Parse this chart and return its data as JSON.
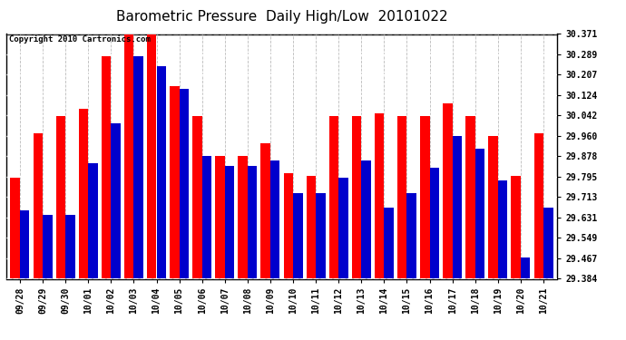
{
  "title": "Barometric Pressure  Daily High/Low  20101022",
  "copyright_text": "Copyright 2010 Cartronics.com",
  "dates": [
    "09/28",
    "09/29",
    "09/30",
    "10/01",
    "10/02",
    "10/03",
    "10/04",
    "10/05",
    "10/06",
    "10/07",
    "10/08",
    "10/09",
    "10/10",
    "10/11",
    "10/12",
    "10/13",
    "10/14",
    "10/15",
    "10/16",
    "10/17",
    "10/18",
    "10/19",
    "10/20",
    "10/21"
  ],
  "highs": [
    29.79,
    29.97,
    30.04,
    30.07,
    30.28,
    30.37,
    30.37,
    30.16,
    30.04,
    29.88,
    29.88,
    29.93,
    29.81,
    29.8,
    30.04,
    30.04,
    30.05,
    30.04,
    30.04,
    30.09,
    30.04,
    29.96,
    29.8,
    29.97
  ],
  "lows": [
    29.66,
    29.64,
    29.64,
    29.85,
    30.01,
    30.28,
    30.24,
    30.15,
    29.88,
    29.84,
    29.84,
    29.86,
    29.73,
    29.73,
    29.79,
    29.86,
    29.67,
    29.73,
    29.83,
    29.96,
    29.91,
    29.78,
    29.47,
    29.67
  ],
  "high_color": "#ff0000",
  "low_color": "#0000cc",
  "bg_color": "#ffffff",
  "ymin": 29.384,
  "ymax": 30.371,
  "yticks": [
    29.384,
    29.467,
    29.549,
    29.631,
    29.713,
    29.795,
    29.878,
    29.96,
    30.042,
    30.124,
    30.207,
    30.289,
    30.371
  ],
  "ytick_labels": [
    "29.384",
    "29.467",
    "29.549",
    "29.631",
    "29.713",
    "29.795",
    "29.878",
    "29.960",
    "30.042",
    "30.124",
    "30.207",
    "30.289",
    "30.371"
  ],
  "bar_width": 0.42,
  "title_fontsize": 11,
  "tick_fontsize": 7,
  "copyright_fontsize": 6.5
}
